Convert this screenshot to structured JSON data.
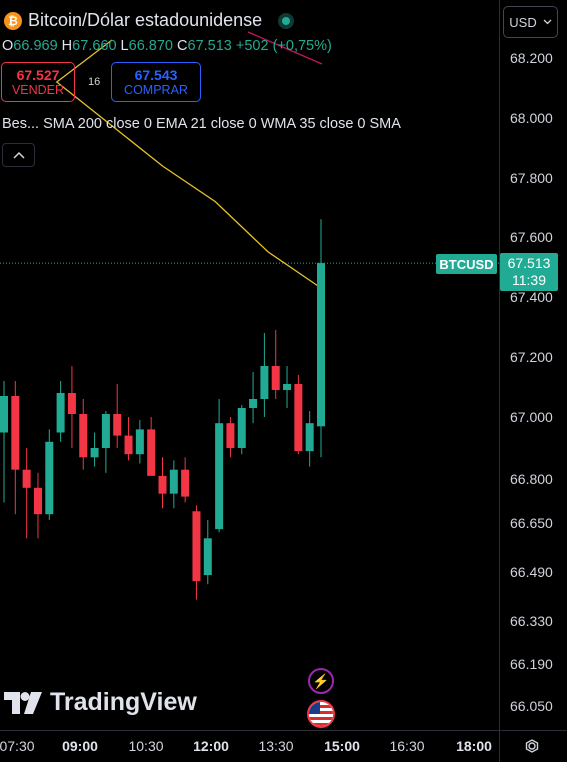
{
  "header": {
    "coin_icon": "bitcoin-icon",
    "coin_glyph": "₿",
    "title": "Bitcoin/Dólar estadounidense",
    "ohlc": {
      "o_label": "O",
      "o": "66.969",
      "h_label": "H",
      "h": "67.660",
      "l_label": "L",
      "l": "66.870",
      "c_label": "C",
      "c": "67.513",
      "change": "+502 (+0,75%)"
    },
    "sell": {
      "price": "67.527",
      "label": "VENDER"
    },
    "buy": {
      "price": "67.543",
      "label": "COMPRAR"
    },
    "spread": "16",
    "indicators": "Bes... SMA 200 close 0 EMA 21 close 0 WMA 35 close 0 SMA"
  },
  "currency": {
    "label": "USD"
  },
  "symbol_tag": "BTCUSD",
  "price_tag": {
    "price": "67.513",
    "countdown": "11:39"
  },
  "watermark": "TradingView",
  "colors": {
    "up": "#22ab94",
    "down": "#f23645",
    "ma": "#e6c229",
    "ma_red": "#c2185b",
    "background": "#000000"
  },
  "chart_data": {
    "type": "candlestick",
    "y_ticks": [
      "68.200",
      "68.000",
      "67.800",
      "67.600",
      "67.400",
      "67.200",
      "67.000",
      "66.800",
      "66.650",
      "66.490",
      "66.330",
      "66.190",
      "66.050"
    ],
    "y_tick_values": [
      68.2,
      68.0,
      67.8,
      67.6,
      67.4,
      67.2,
      67.0,
      66.8,
      66.65,
      66.49,
      66.33,
      66.19,
      66.05
    ],
    "x_ticks": [
      {
        "label": "07:30",
        "bold": false
      },
      {
        "label": "09:00",
        "bold": true
      },
      {
        "label": "10:30",
        "bold": false
      },
      {
        "label": "12:00",
        "bold": true
      },
      {
        "label": "13:30",
        "bold": false
      },
      {
        "label": "15:00",
        "bold": true
      },
      {
        "label": "16:30",
        "bold": false
      },
      {
        "label": "18:00",
        "bold": true
      }
    ],
    "last_price": 67.513,
    "candles": [
      {
        "o": 66.95,
        "h": 67.12,
        "l": 66.72,
        "c": 67.07
      },
      {
        "o": 67.07,
        "h": 67.12,
        "l": 66.68,
        "c": 66.83
      },
      {
        "o": 66.83,
        "h": 66.9,
        "l": 66.6,
        "c": 66.77
      },
      {
        "o": 66.77,
        "h": 66.82,
        "l": 66.6,
        "c": 66.68
      },
      {
        "o": 66.68,
        "h": 66.96,
        "l": 66.66,
        "c": 66.92
      },
      {
        "o": 66.95,
        "h": 67.12,
        "l": 66.92,
        "c": 67.08
      },
      {
        "o": 67.08,
        "h": 67.17,
        "l": 66.9,
        "c": 67.01
      },
      {
        "o": 67.01,
        "h": 67.06,
        "l": 66.83,
        "c": 66.87
      },
      {
        "o": 66.87,
        "h": 66.95,
        "l": 66.84,
        "c": 66.9
      },
      {
        "o": 66.9,
        "h": 67.02,
        "l": 66.82,
        "c": 67.01
      },
      {
        "o": 67.01,
        "h": 67.11,
        "l": 66.9,
        "c": 66.94
      },
      {
        "o": 66.94,
        "h": 67.0,
        "l": 66.86,
        "c": 66.88
      },
      {
        "o": 66.88,
        "h": 66.99,
        "l": 66.85,
        "c": 66.96
      },
      {
        "o": 66.96,
        "h": 67.0,
        "l": 66.82,
        "c": 66.81
      },
      {
        "o": 66.81,
        "h": 66.87,
        "l": 66.7,
        "c": 66.75
      },
      {
        "o": 66.75,
        "h": 66.86,
        "l": 66.7,
        "c": 66.83
      },
      {
        "o": 66.83,
        "h": 66.87,
        "l": 66.72,
        "c": 66.74
      },
      {
        "o": 66.69,
        "h": 66.71,
        "l": 66.4,
        "c": 66.46
      },
      {
        "o": 66.48,
        "h": 66.66,
        "l": 66.45,
        "c": 66.6
      },
      {
        "o": 66.63,
        "h": 67.06,
        "l": 66.62,
        "c": 66.98
      },
      {
        "o": 66.98,
        "h": 67.0,
        "l": 66.87,
        "c": 66.9
      },
      {
        "o": 66.9,
        "h": 67.04,
        "l": 66.88,
        "c": 67.03
      },
      {
        "o": 67.03,
        "h": 67.15,
        "l": 66.98,
        "c": 67.06
      },
      {
        "o": 67.06,
        "h": 67.28,
        "l": 67.0,
        "c": 67.17
      },
      {
        "o": 67.17,
        "h": 67.29,
        "l": 67.06,
        "c": 67.09
      },
      {
        "o": 67.09,
        "h": 67.17,
        "l": 67.03,
        "c": 67.11
      },
      {
        "o": 67.11,
        "h": 67.14,
        "l": 66.88,
        "c": 66.89
      },
      {
        "o": 66.89,
        "h": 67.02,
        "l": 66.84,
        "c": 66.98
      },
      {
        "o": 66.97,
        "h": 67.66,
        "l": 66.87,
        "c": 67.513
      }
    ],
    "ma_line": {
      "x_start": 0,
      "x_end": 28,
      "values": [
        68.25,
        68.12,
        67.98,
        67.84,
        67.72,
        67.55,
        67.43
      ]
    }
  }
}
